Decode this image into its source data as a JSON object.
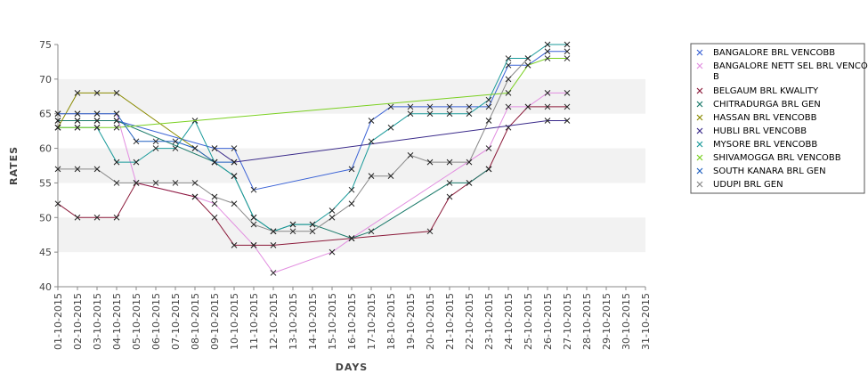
{
  "chart_data": {
    "type": "line",
    "xlabel": "DAYS",
    "ylabel": "RATES",
    "ylim": [
      40,
      75
    ],
    "yticks": [
      40,
      45,
      50,
      55,
      60,
      65,
      70,
      75
    ],
    "grid": false,
    "band_ranges": [
      [
        45,
        50
      ],
      [
        55,
        60
      ],
      [
        65,
        70
      ]
    ],
    "band_color": "#f2f2f2",
    "legend_position": "right",
    "categories": [
      "01-10-2015",
      "02-10-2015",
      "03-10-2015",
      "04-10-2015",
      "05-10-2015",
      "06-10-2015",
      "07-10-2015",
      "08-10-2015",
      "09-10-2015",
      "10-10-2015",
      "11-10-2015",
      "12-10-2015",
      "13-10-2015",
      "14-10-2015",
      "15-10-2015",
      "16-10-2015",
      "17-10-2015",
      "18-10-2015",
      "19-10-2015",
      "20-10-2015",
      "21-10-2015",
      "22-10-2015",
      "23-10-2015",
      "24-10-2015",
      "25-10-2015",
      "26-10-2015",
      "27-10-2015",
      "28-10-2015",
      "29-10-2015",
      "30-10-2015",
      "31-10-2015"
    ],
    "series": [
      {
        "name": "BANGALORE BRL VENCOBB",
        "color": "#3b63d6",
        "points": [
          [
            0,
            64
          ],
          [
            1,
            64
          ],
          [
            2,
            64
          ],
          [
            3,
            64
          ],
          [
            8,
            60
          ],
          [
            9,
            60
          ],
          [
            10,
            54
          ],
          [
            15,
            57
          ],
          [
            16,
            64
          ],
          [
            17,
            66
          ],
          [
            18,
            66
          ],
          [
            19,
            66
          ],
          [
            20,
            66
          ],
          [
            21,
            66
          ],
          [
            22,
            66
          ],
          [
            23,
            72
          ],
          [
            24,
            72
          ],
          [
            25,
            74
          ],
          [
            26,
            74
          ]
        ]
      },
      {
        "name": "BANGALORE NETT SEL BRL VENCOBB",
        "color": "#e28ee0",
        "points": [
          [
            0,
            65
          ],
          [
            1,
            65
          ],
          [
            2,
            65
          ],
          [
            3,
            65
          ],
          [
            4,
            55
          ],
          [
            7,
            53
          ],
          [
            8,
            52
          ],
          [
            10,
            46
          ],
          [
            11,
            42
          ],
          [
            14,
            45
          ],
          [
            15,
            47
          ],
          [
            22,
            60
          ],
          [
            23,
            66
          ],
          [
            24,
            66
          ],
          [
            25,
            68
          ],
          [
            26,
            68
          ]
        ]
      },
      {
        "name": "BELGAUM BRL KWALITY",
        "color": "#8b1a3a",
        "points": [
          [
            0,
            52
          ],
          [
            1,
            50
          ],
          [
            2,
            50
          ],
          [
            3,
            50
          ],
          [
            4,
            55
          ],
          [
            7,
            53
          ],
          [
            8,
            50
          ],
          [
            9,
            46
          ],
          [
            10,
            46
          ],
          [
            11,
            46
          ],
          [
            15,
            47
          ],
          [
            19,
            48
          ],
          [
            20,
            53
          ],
          [
            21,
            55
          ],
          [
            22,
            57
          ],
          [
            23,
            63
          ],
          [
            24,
            66
          ],
          [
            25,
            66
          ],
          [
            26,
            66
          ]
        ]
      },
      {
        "name": "CHITRADURGA BRL GEN",
        "color": "#1a7a6a",
        "points": [
          [
            0,
            64
          ],
          [
            1,
            64
          ],
          [
            2,
            64
          ],
          [
            3,
            64
          ],
          [
            8,
            58
          ],
          [
            9,
            56
          ],
          [
            10,
            50
          ],
          [
            11,
            48
          ],
          [
            12,
            49
          ],
          [
            13,
            49
          ],
          [
            15,
            47
          ],
          [
            16,
            48
          ],
          [
            20,
            55
          ],
          [
            21,
            55
          ],
          [
            22,
            57
          ]
        ]
      },
      {
        "name": "HASSAN BRL VENCOBB",
        "color": "#8a8a00",
        "points": [
          [
            0,
            63
          ],
          [
            1,
            68
          ],
          [
            2,
            68
          ],
          [
            3,
            68
          ],
          [
            7,
            60
          ],
          [
            8,
            58
          ]
        ]
      },
      {
        "name": "HUBLI BRL VENCOBB",
        "color": "#3a2a8a",
        "points": [
          [
            8,
            60
          ],
          [
            9,
            58
          ],
          [
            25,
            64
          ],
          [
            26,
            64
          ]
        ]
      },
      {
        "name": "MYSORE BRL VENCOBB",
        "color": "#1a9a9a",
        "points": [
          [
            0,
            63
          ],
          [
            1,
            63
          ],
          [
            2,
            63
          ],
          [
            3,
            58
          ],
          [
            4,
            58
          ],
          [
            5,
            60
          ],
          [
            6,
            60
          ],
          [
            7,
            64
          ],
          [
            8,
            58
          ],
          [
            9,
            56
          ],
          [
            10,
            50
          ],
          [
            11,
            48
          ],
          [
            12,
            49
          ],
          [
            13,
            49
          ],
          [
            14,
            51
          ],
          [
            15,
            54
          ],
          [
            16,
            61
          ],
          [
            17,
            63
          ],
          [
            18,
            65
          ],
          [
            19,
            65
          ],
          [
            20,
            65
          ],
          [
            21,
            65
          ],
          [
            22,
            67
          ],
          [
            23,
            73
          ],
          [
            24,
            73
          ],
          [
            25,
            75
          ],
          [
            26,
            75
          ]
        ]
      },
      {
        "name": "SHIVAMOGGA BRL VENCOBB",
        "color": "#7ad020",
        "points": [
          [
            0,
            63
          ],
          [
            1,
            63
          ],
          [
            2,
            63
          ],
          [
            3,
            63
          ],
          [
            23,
            68
          ],
          [
            24,
            72
          ],
          [
            25,
            73
          ],
          [
            26,
            73
          ]
        ]
      },
      {
        "name": "SOUTH KANARA BRL GEN",
        "color": "#2060c0",
        "points": [
          [
            0,
            65
          ],
          [
            1,
            65
          ],
          [
            2,
            65
          ],
          [
            3,
            65
          ],
          [
            4,
            61
          ],
          [
            5,
            61
          ],
          [
            6,
            61
          ],
          [
            7,
            60
          ],
          [
            8,
            58
          ],
          [
            9,
            58
          ]
        ]
      },
      {
        "name": "UDUPI BRL GEN",
        "color": "#888888",
        "points": [
          [
            0,
            57
          ],
          [
            1,
            57
          ],
          [
            2,
            57
          ],
          [
            3,
            55
          ],
          [
            4,
            55
          ],
          [
            5,
            55
          ],
          [
            6,
            55
          ],
          [
            7,
            55
          ],
          [
            8,
            53
          ],
          [
            9,
            52
          ],
          [
            10,
            49
          ],
          [
            11,
            48
          ],
          [
            12,
            48
          ],
          [
            13,
            48
          ],
          [
            14,
            50
          ],
          [
            15,
            52
          ],
          [
            16,
            56
          ],
          [
            17,
            56
          ],
          [
            18,
            59
          ],
          [
            19,
            58
          ],
          [
            20,
            58
          ],
          [
            21,
            58
          ],
          [
            22,
            64
          ],
          [
            23,
            70
          ],
          [
            24,
            73
          ]
        ]
      }
    ]
  }
}
